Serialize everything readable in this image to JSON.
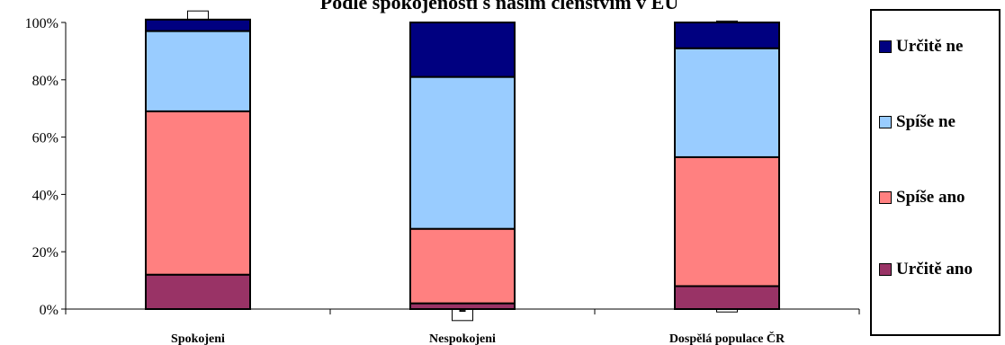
{
  "chart_data": {
    "type": "bar",
    "stacked": true,
    "title": "Podle spokojenosti s naším členstvím v EU",
    "categories": [
      "Spokojeni",
      "Nespokojeni",
      "Dospělá populace ČR"
    ],
    "y_ticks": [
      "0%",
      "20%",
      "40%",
      "60%",
      "80%",
      "100%"
    ],
    "ylim": [
      0,
      100
    ],
    "grid": false,
    "legend_position": "right",
    "series": [
      {
        "name": "Určitě ano",
        "color": "#993366",
        "values": [
          12,
          2,
          8
        ]
      },
      {
        "name": "Spíše ano",
        "color": "#ff8080",
        "values": [
          57,
          26,
          45
        ]
      },
      {
        "name": "Spíše ne",
        "color": "#99ccff",
        "values": [
          28,
          53,
          38
        ]
      },
      {
        "name": "Určitě ne",
        "color": "#000080",
        "values": [
          4,
          19,
          9
        ]
      }
    ],
    "legend_order": [
      "Určitě ne",
      "Spíše ne",
      "Spíše ano",
      "Určitě ano"
    ]
  }
}
